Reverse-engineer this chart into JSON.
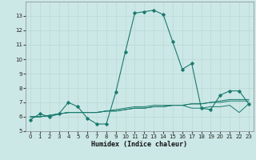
{
  "xlabel": "Humidex (Indice chaleur)",
  "x": [
    0,
    1,
    2,
    3,
    4,
    5,
    6,
    7,
    8,
    9,
    10,
    11,
    12,
    13,
    14,
    15,
    16,
    17,
    18,
    19,
    20,
    21,
    22,
    23
  ],
  "y_main": [
    5.8,
    6.2,
    6.0,
    6.2,
    7.0,
    6.7,
    5.9,
    5.5,
    5.5,
    7.7,
    10.5,
    13.2,
    13.3,
    13.4,
    13.1,
    11.2,
    9.3,
    9.7,
    6.6,
    6.5,
    7.5,
    7.8,
    7.8,
    6.9
  ],
  "extra_lines": [
    [
      6.0,
      6.0,
      6.1,
      6.2,
      6.3,
      6.3,
      6.3,
      6.3,
      6.4,
      6.4,
      6.5,
      6.6,
      6.6,
      6.7,
      6.7,
      6.8,
      6.8,
      6.9,
      6.9,
      7.0,
      7.0,
      7.1,
      7.1,
      7.1
    ],
    [
      6.0,
      6.0,
      6.1,
      6.2,
      6.3,
      6.3,
      6.3,
      6.3,
      6.4,
      6.4,
      6.5,
      6.6,
      6.6,
      6.7,
      6.7,
      6.8,
      6.8,
      6.9,
      6.9,
      7.0,
      7.1,
      7.2,
      7.2,
      7.2
    ],
    [
      6.0,
      6.0,
      6.1,
      6.2,
      6.3,
      6.3,
      6.3,
      6.3,
      6.4,
      6.5,
      6.6,
      6.7,
      6.7,
      6.8,
      6.8,
      6.8,
      6.8,
      6.6,
      6.6,
      6.7,
      6.7,
      6.8,
      6.3,
      6.9
    ]
  ],
  "color": "#1a7a6e",
  "bg_color": "#cce8e6",
  "grid_color": "#b8d8d4",
  "ylim": [
    5,
    14
  ],
  "xlim": [
    -0.5,
    23.5
  ],
  "yticks": [
    5,
    6,
    7,
    8,
    9,
    10,
    11,
    12,
    13
  ],
  "xticks": [
    0,
    1,
    2,
    3,
    4,
    5,
    6,
    7,
    8,
    9,
    10,
    11,
    12,
    13,
    14,
    15,
    16,
    17,
    18,
    19,
    20,
    21,
    22,
    23
  ]
}
